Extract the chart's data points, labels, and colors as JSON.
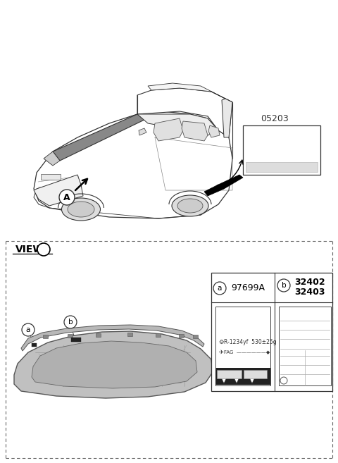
{
  "bg_color": "#ffffff",
  "part_number_05203": "05203",
  "label_a_text": "97699A",
  "label_b1_text": "32402",
  "label_b2_text": "32403",
  "refrigerant_text": "R-1234yf  530±25g",
  "fag_text": "FAG",
  "view_label": "VIEW",
  "line_color": "#333333",
  "dark_fill": "#444444",
  "mid_fill": "#888888",
  "light_fill": "#cccccc"
}
